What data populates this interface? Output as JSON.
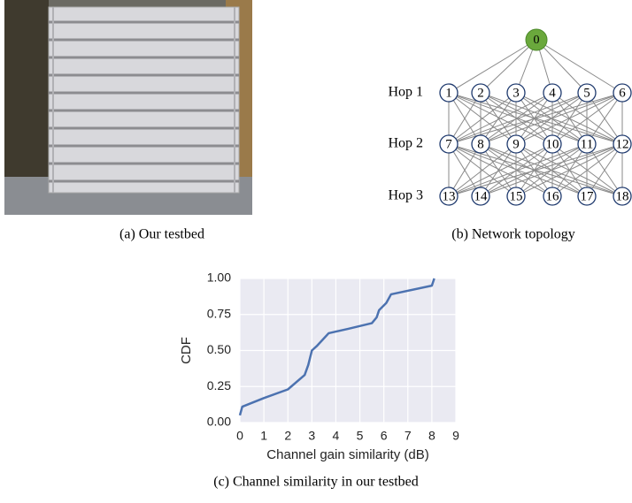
{
  "subfigures": {
    "a": {
      "caption": "(a) Our testbed"
    },
    "b": {
      "caption": "(b) Network topology",
      "root": "0",
      "hops": [
        {
          "label": "Hop 1",
          "nodes": [
            "1",
            "2",
            "3",
            "4",
            "5",
            "6"
          ]
        },
        {
          "label": "Hop 2",
          "nodes": [
            "7",
            "8",
            "9",
            "10",
            "11",
            "12"
          ]
        },
        {
          "label": "Hop 3",
          "nodes": [
            "13",
            "14",
            "15",
            "16",
            "17",
            "18"
          ]
        }
      ]
    }
  },
  "chart_data": {
    "type": "line",
    "caption": "(c) Channel similarity in our testbed",
    "xlabel": "Channel gain similarity (dB)",
    "ylabel": "CDF",
    "x": [
      0,
      0.1,
      1,
      2,
      2.7,
      2.85,
      3,
      3.2,
      3.7,
      4.5,
      5.5,
      5.7,
      5.8,
      6.1,
      6.3,
      8,
      8.1
    ],
    "series": [
      {
        "color": "#4c72b0",
        "values": [
          0.05,
          0.11,
          0.17,
          0.23,
          0.33,
          0.4,
          0.5,
          0.53,
          0.62,
          0.65,
          0.69,
          0.73,
          0.78,
          0.83,
          0.89,
          0.95,
          1.0
        ]
      }
    ],
    "xlim": [
      0,
      9
    ],
    "xticks": [
      0,
      1,
      2,
      3,
      4,
      5,
      6,
      7,
      8,
      9
    ],
    "ylim": [
      0,
      1
    ],
    "yticks": [
      {
        "value": 0,
        "label": "0.00"
      },
      {
        "value": 0.25,
        "label": "0.25"
      },
      {
        "value": 0.5,
        "label": "0.50"
      },
      {
        "value": 0.75,
        "label": "0.75"
      },
      {
        "value": 1,
        "label": "1.00"
      }
    ],
    "grid": true,
    "background": "#eaeaf2"
  }
}
